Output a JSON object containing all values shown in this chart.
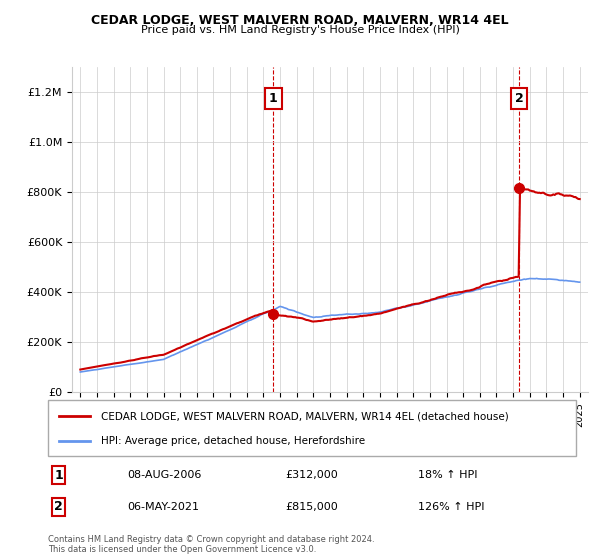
{
  "title": "CEDAR LODGE, WEST MALVERN ROAD, MALVERN, WR14 4EL",
  "subtitle": "Price paid vs. HM Land Registry's House Price Index (HPI)",
  "legend_line1": "CEDAR LODGE, WEST MALVERN ROAD, MALVERN, WR14 4EL (detached house)",
  "legend_line2": "HPI: Average price, detached house, Herefordshire",
  "transaction1_label": "1",
  "transaction1_date": "08-AUG-2006",
  "transaction1_price": "£312,000",
  "transaction1_hpi": "18% ↑ HPI",
  "transaction2_label": "2",
  "transaction2_date": "06-MAY-2021",
  "transaction2_price": "£815,000",
  "transaction2_hpi": "126% ↑ HPI",
  "footnote": "Contains HM Land Registry data © Crown copyright and database right 2024.\nThis data is licensed under the Open Government Licence v3.0.",
  "hpi_color": "#6495ED",
  "price_color": "#CC0000",
  "marker_color": "#CC0000",
  "vertical_line_color": "#CC0000",
  "ylim_min": 0,
  "ylim_max": 1300000,
  "x_start_year": 1995,
  "x_end_year": 2025,
  "transaction1_year": 2006.6,
  "transaction2_year": 2021.35,
  "transaction1_value": 312000,
  "transaction2_value": 815000
}
